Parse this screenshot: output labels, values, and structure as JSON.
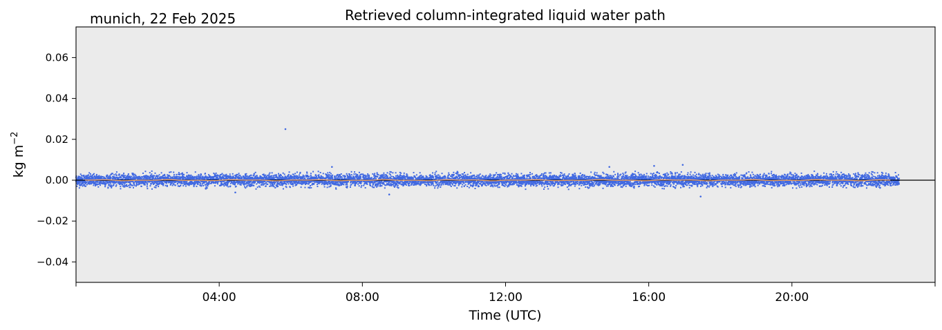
{
  "chart_data": {
    "type": "scatter",
    "title": "Retrieved column-integrated liquid water path",
    "location_date": "munich, 22 Feb 2025",
    "xlabel": "Time (UTC)",
    "ylabel_base": "kg m",
    "ylabel_exp": "−2",
    "xlim_hours": [
      0,
      24
    ],
    "ylim": [
      -0.05,
      0.075
    ],
    "x_ticks": [
      {
        "h": 4,
        "label": "04:00"
      },
      {
        "h": 8,
        "label": "08:00"
      },
      {
        "h": 12,
        "label": "12:00"
      },
      {
        "h": 16,
        "label": "16:00"
      },
      {
        "h": 20,
        "label": "20:00"
      }
    ],
    "x_minor_ticks_hours": [
      0,
      24
    ],
    "y_ticks": [
      {
        "v": 0.06,
        "label": "0.06"
      },
      {
        "v": 0.04,
        "label": "0.04"
      },
      {
        "v": 0.02,
        "label": "0.02"
      },
      {
        "v": 0.0,
        "label": "0.00"
      },
      {
        "v": -0.02,
        "label": "−0.02"
      },
      {
        "v": -0.04,
        "label": "−0.04"
      }
    ],
    "grid": false,
    "zero_line": true,
    "data_time_range_hours": [
      0.0,
      23.0
    ],
    "scatter_noise_envelope": 0.0045,
    "series": [
      {
        "kind": "scatter-points",
        "color": "#4169E1",
        "outliers": [
          {
            "h": 5.85,
            "y": 0.025
          },
          {
            "h": 7.15,
            "y": 0.0065
          },
          {
            "h": 8.75,
            "y": -0.007
          },
          {
            "h": 16.15,
            "y": 0.007
          },
          {
            "h": 16.95,
            "y": 0.0075
          },
          {
            "h": 17.45,
            "y": -0.008
          },
          {
            "h": 4.45,
            "y": -0.006
          },
          {
            "h": 14.9,
            "y": 0.0065
          }
        ]
      },
      {
        "kind": "smoothed-line",
        "color": "#F4A460",
        "value": 0.0
      }
    ],
    "gap_times_hours": [
      4.0,
      8.0,
      10.0,
      14.0,
      18.0,
      22.0
    ],
    "colors": {
      "plot_background": "#EBEBEB",
      "points": "#4169E1",
      "smoothed": "#F4A460",
      "zero_line": "#000000"
    }
  }
}
